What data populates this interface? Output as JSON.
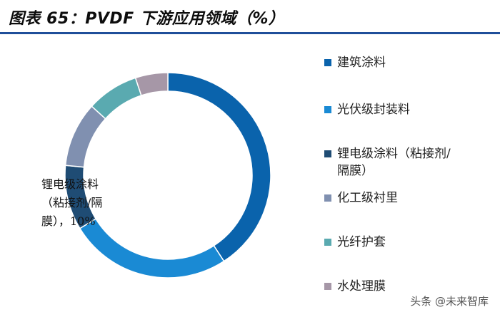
{
  "header": {
    "title": "图表 65：PVDF 下游应用领域（%）"
  },
  "chart_data": {
    "type": "pie",
    "style": "donut",
    "colors": [
      "#0a63ac",
      "#1a8ad4",
      "#1f4c74",
      "#8090b0",
      "#5aaab0",
      "#a697a7"
    ],
    "categories": [
      "建筑涂料",
      "光伏级封装料",
      "锂电级涂料（粘接剂/隔膜）",
      "化工级衬里",
      "光纤护套",
      "水处理膜"
    ],
    "values": [
      40,
      25,
      10,
      10,
      8,
      5
    ],
    "legend": {
      "placement": "right",
      "entries": [
        "建筑涂料",
        "光伏级封装料",
        "锂电级涂料（粘接剂/\n隔膜）",
        "化工级衬里",
        "光纤护套",
        "水处理膜"
      ]
    },
    "annotation": {
      "lines": [
        "锂电级涂料",
        "（粘接剂/隔",
        "膜），10%"
      ]
    }
  },
  "watermark": {
    "text": "头条 @未来智库"
  }
}
